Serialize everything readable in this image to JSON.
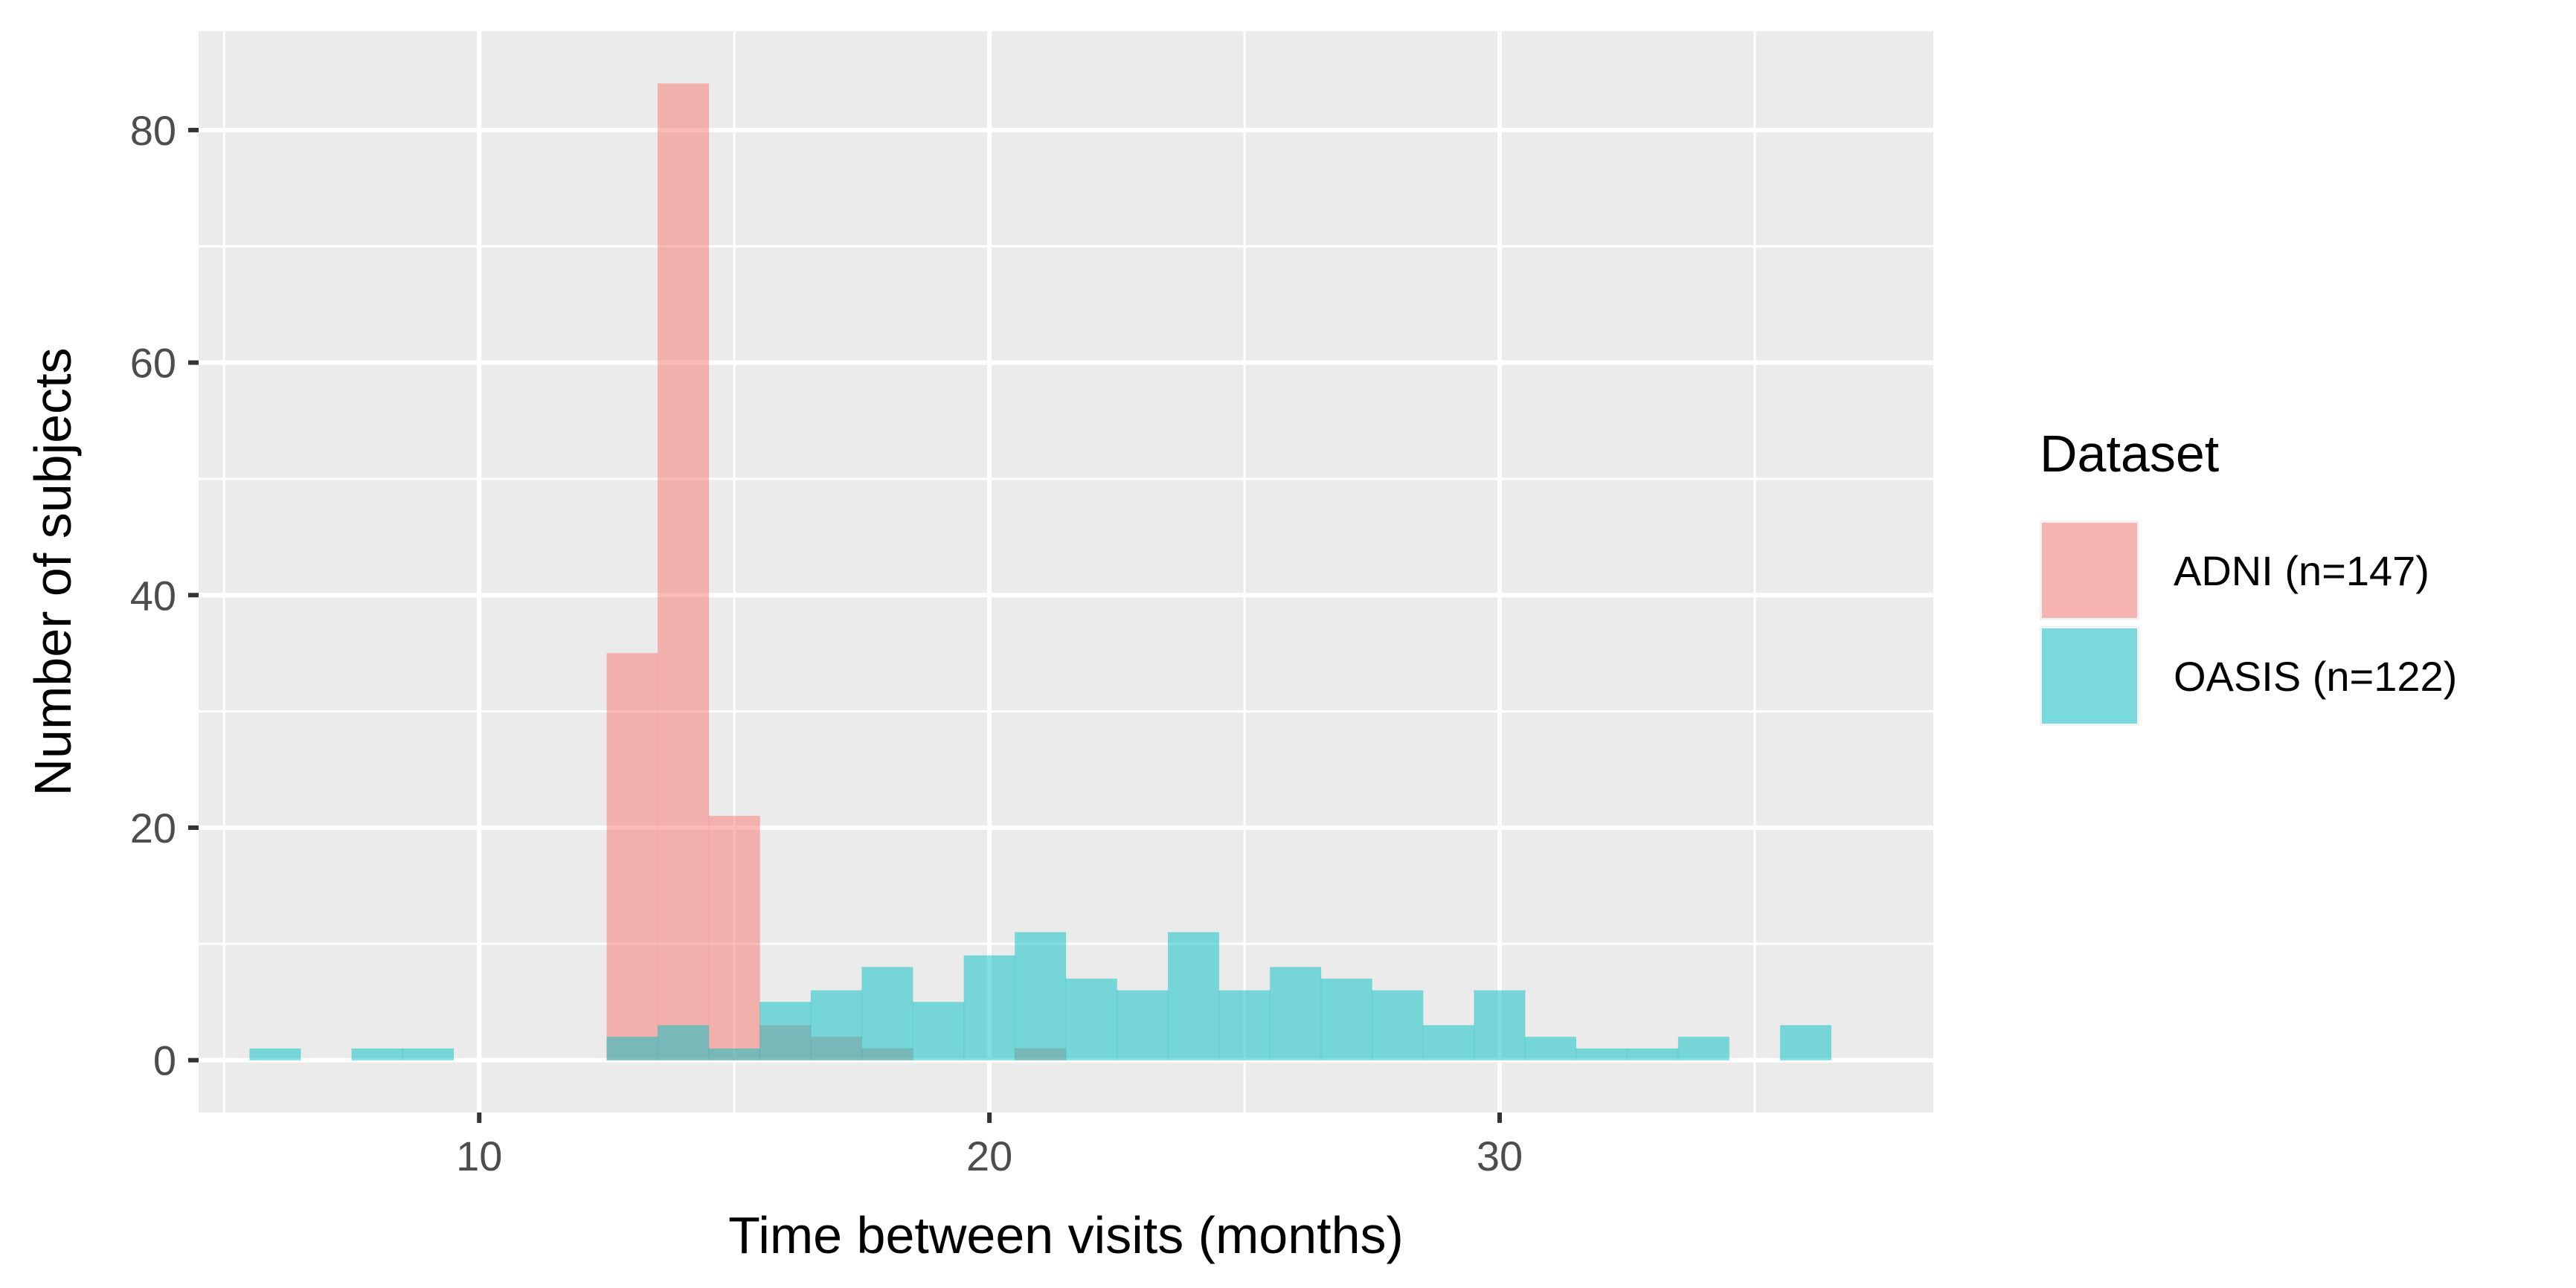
{
  "chart_data": {
    "type": "histogram",
    "xlabel": "Time between visits (months)",
    "ylabel": "Number of subjects",
    "xlim": [
      4.5,
      38.5
    ],
    "ylim": [
      -4.5,
      88.5
    ],
    "x_ticks": [
      10,
      20,
      30
    ],
    "x_minor_ticks": [
      5,
      15,
      25,
      35
    ],
    "y_ticks": [
      0,
      20,
      40,
      60,
      80
    ],
    "y_minor_ticks": [
      10,
      30,
      50,
      70
    ],
    "bin_width": 1,
    "grid": true,
    "legend": {
      "title": "Dataset",
      "placement": "right"
    },
    "series": [
      {
        "name": "ADNI (n=147)",
        "color": "#F8766D",
        "bins": [
          {
            "x0": 12.5,
            "x1": 13.5,
            "count": 35
          },
          {
            "x0": 13.5,
            "x1": 14.5,
            "count": 84
          },
          {
            "x0": 14.5,
            "x1": 15.5,
            "count": 21
          },
          {
            "x0": 15.5,
            "x1": 16.5,
            "count": 3
          },
          {
            "x0": 16.5,
            "x1": 17.5,
            "count": 2
          },
          {
            "x0": 17.5,
            "x1": 18.5,
            "count": 1
          },
          {
            "x0": 20.5,
            "x1": 21.5,
            "count": 1
          }
        ]
      },
      {
        "name": "OASIS (n=122)",
        "color": "#00BFC4",
        "bins": [
          {
            "x0": 5.5,
            "x1": 6.5,
            "count": 1
          },
          {
            "x0": 7.5,
            "x1": 8.5,
            "count": 1
          },
          {
            "x0": 8.5,
            "x1": 9.5,
            "count": 1
          },
          {
            "x0": 12.5,
            "x1": 13.5,
            "count": 2
          },
          {
            "x0": 13.5,
            "x1": 14.5,
            "count": 3
          },
          {
            "x0": 14.5,
            "x1": 15.5,
            "count": 1
          },
          {
            "x0": 15.5,
            "x1": 16.5,
            "count": 5
          },
          {
            "x0": 16.5,
            "x1": 17.5,
            "count": 6
          },
          {
            "x0": 17.5,
            "x1": 18.5,
            "count": 8
          },
          {
            "x0": 18.5,
            "x1": 19.5,
            "count": 5
          },
          {
            "x0": 19.5,
            "x1": 20.5,
            "count": 9
          },
          {
            "x0": 20.5,
            "x1": 21.5,
            "count": 11
          },
          {
            "x0": 21.5,
            "x1": 22.5,
            "count": 7
          },
          {
            "x0": 22.5,
            "x1": 23.5,
            "count": 6
          },
          {
            "x0": 23.5,
            "x1": 24.5,
            "count": 11
          },
          {
            "x0": 24.5,
            "x1": 25.5,
            "count": 6
          },
          {
            "x0": 25.5,
            "x1": 26.5,
            "count": 8
          },
          {
            "x0": 26.5,
            "x1": 27.5,
            "count": 7
          },
          {
            "x0": 27.5,
            "x1": 28.5,
            "count": 6
          },
          {
            "x0": 28.5,
            "x1": 29.5,
            "count": 3
          },
          {
            "x0": 29.5,
            "x1": 30.5,
            "count": 6
          },
          {
            "x0": 30.5,
            "x1": 31.5,
            "count": 2
          },
          {
            "x0": 31.5,
            "x1": 32.5,
            "count": 1
          },
          {
            "x0": 32.5,
            "x1": 33.5,
            "count": 1
          },
          {
            "x0": 33.5,
            "x1": 34.5,
            "count": 2
          },
          {
            "x0": 35.5,
            "x1": 36.5,
            "count": 3
          }
        ]
      }
    ]
  },
  "colors": {
    "panel_background": "#EBEBEB",
    "grid_line": "#FFFFFF",
    "tick_text": "#4D4D4D",
    "tick_mark": "#333333"
  }
}
